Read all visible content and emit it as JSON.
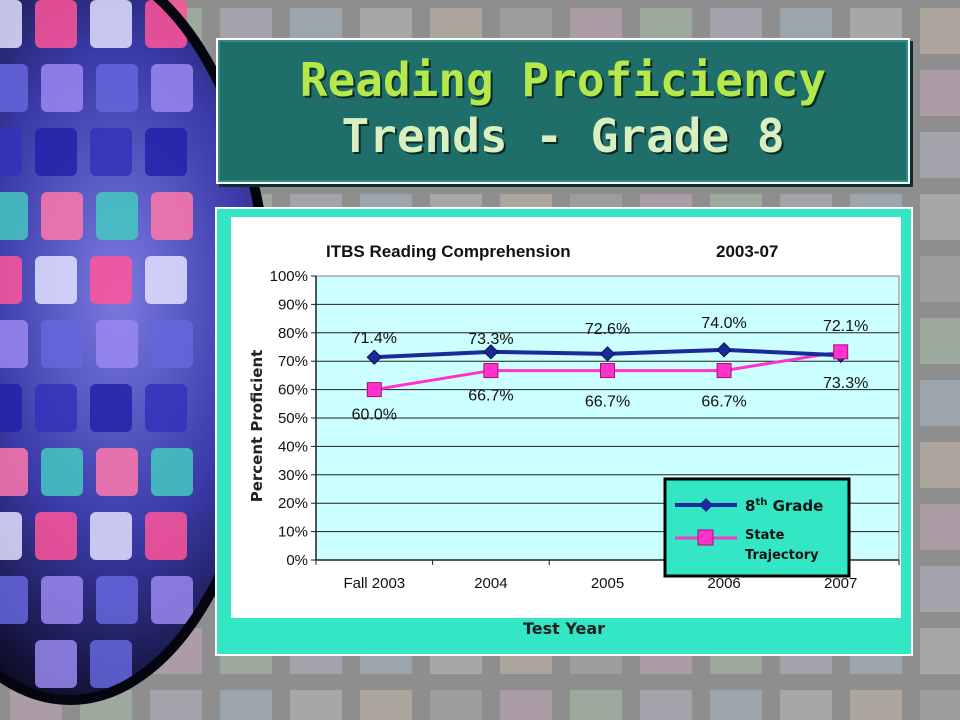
{
  "slide": {
    "title_line1": "Reading Proficiency",
    "title_line2": "Trends - Grade 8"
  },
  "colors": {
    "title_bg": "#1f6e6a",
    "title_text": "#b5e84a",
    "panel": "#33e6c4",
    "plot_bg": "#ccffff",
    "series_8th": "#1a2a9a",
    "series_state": "#ff33cc"
  },
  "chart_data": {
    "type": "line",
    "title": "ITBS Reading Comprehension",
    "subtitle": "2003-07",
    "xlabel": "Test Year",
    "ylabel": "Percent Proficient",
    "ylim": [
      0,
      100
    ],
    "yticks": [
      "0%",
      "10%",
      "20%",
      "30%",
      "40%",
      "50%",
      "60%",
      "70%",
      "80%",
      "90%",
      "100%"
    ],
    "categories": [
      "Fall 2003",
      "2004",
      "2005",
      "2006",
      "2007"
    ],
    "grid": true,
    "legend_position": "bottom-right",
    "series": [
      {
        "name_main": "8",
        "name_sup": "th",
        "name_rest": "Grade",
        "values": [
          71.4,
          73.3,
          72.6,
          74.0,
          72.1
        ],
        "labels": [
          "71.4%",
          "73.3%",
          "72.6%",
          "74.0%",
          "72.1%"
        ],
        "marker": "diamond"
      },
      {
        "name_line1": "State",
        "name_line2": "Trajectory",
        "values": [
          60.0,
          66.7,
          66.7,
          66.7,
          73.3
        ],
        "labels": [
          "60.0%",
          "66.7%",
          "66.7%",
          "66.7%",
          "73.3%"
        ],
        "marker": "square"
      }
    ]
  }
}
